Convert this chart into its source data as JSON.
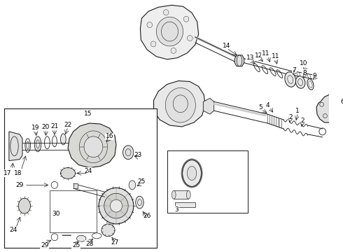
{
  "bg_color": "#ffffff",
  "line_color": "#1a1a1a",
  "box_bg": "#ffffff",
  "fig_width": 4.9,
  "fig_height": 3.6,
  "dpi": 100
}
